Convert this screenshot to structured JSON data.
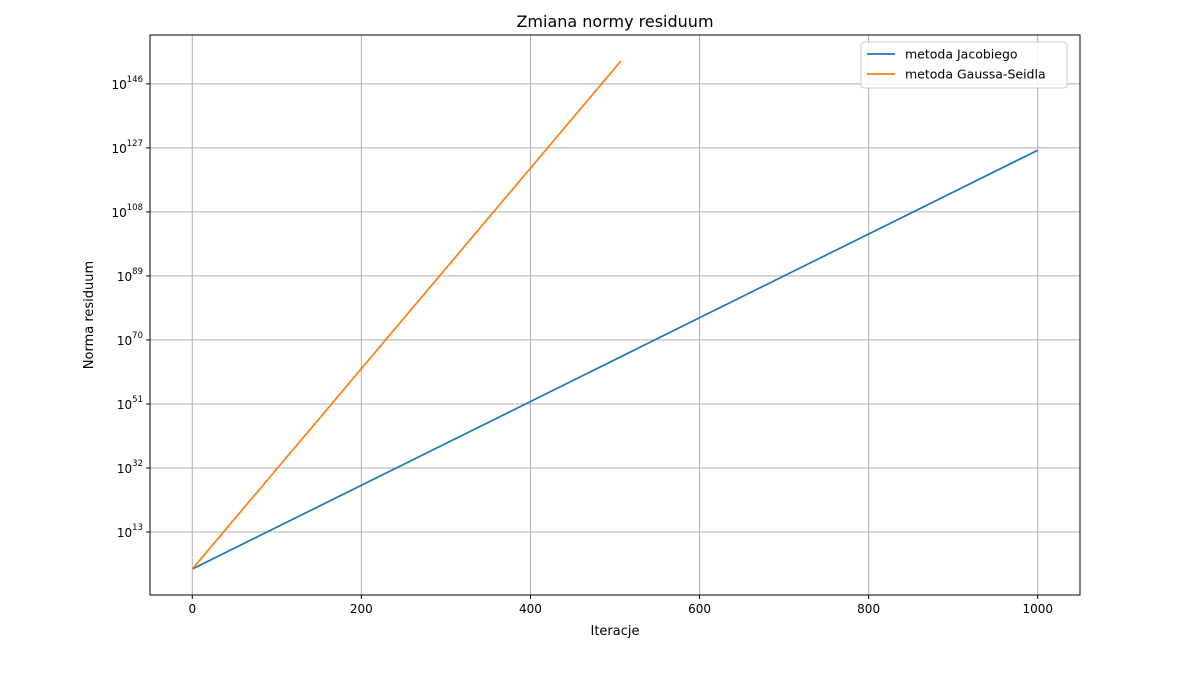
{
  "chart_data": {
    "type": "line",
    "title": "Zmiana normy residuum",
    "xlabel": "Iteracje",
    "ylabel": "Norma residuum",
    "y_scale": "log",
    "xlim": [
      -50,
      1050
    ],
    "ylim_log10": [
      -5.7,
      160.5
    ],
    "x_ticks": [
      0,
      200,
      400,
      600,
      800,
      1000
    ],
    "y_ticks_exponent": [
      13,
      32,
      51,
      70,
      89,
      108,
      127,
      146
    ],
    "y_tick_base": "10",
    "grid": true,
    "legend_position": "top-right",
    "series": [
      {
        "name": "metoda Jacobiego",
        "color": "#1f77b4",
        "x": [
          0,
          1000
        ],
        "log10_y": [
          2,
          126.3
        ]
      },
      {
        "name": "metoda Gaussa-Seidla",
        "color": "#ff7f0e",
        "x": [
          0,
          507
        ],
        "log10_y": [
          2,
          152.8
        ]
      }
    ]
  }
}
